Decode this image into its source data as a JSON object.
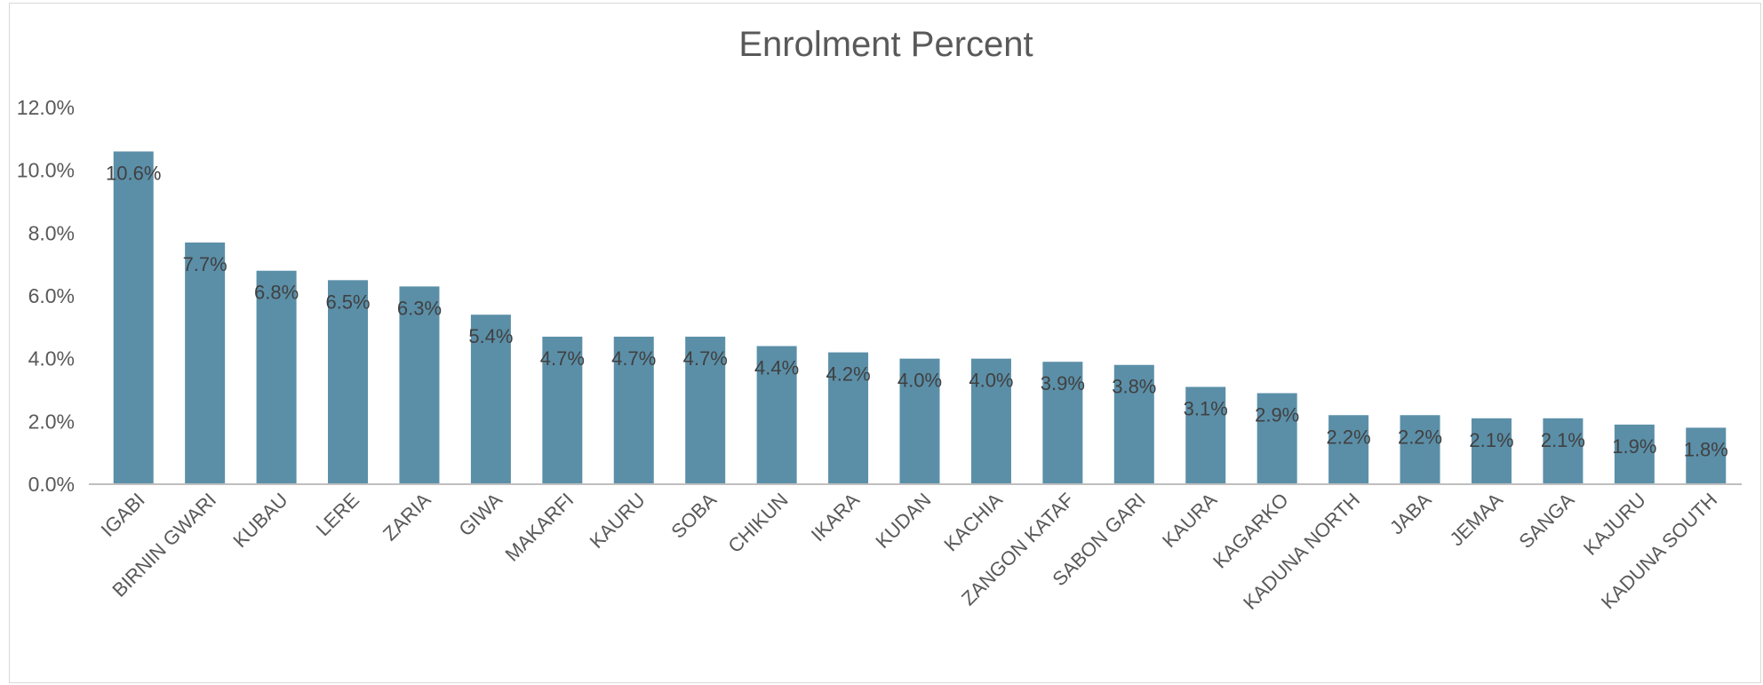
{
  "chart_data": {
    "type": "bar",
    "title": "Enrolment Percent",
    "xlabel": "",
    "ylabel": "",
    "ylim": [
      0,
      12
    ],
    "yticks": [
      "0.0%",
      "2.0%",
      "4.0%",
      "6.0%",
      "8.0%",
      "10.0%",
      "12.0%"
    ],
    "grid": false,
    "legend": "none",
    "bar_color": "#5b8fa8",
    "categories": [
      "IGABI",
      "BIRNIN GWARI",
      "KUBAU",
      "LERE",
      "ZARIA",
      "GIWA",
      "MAKARFI",
      "KAURU",
      "SOBA",
      "CHIKUN",
      "IKARA",
      "KUDAN",
      "KACHIA",
      "ZANGON KATAF",
      "SABON GARI",
      "KAURA",
      "KAGARKO",
      "KADUNA NORTH",
      "JABA",
      "JEMAA",
      "SANGA",
      "KAJURU",
      "KADUNA SOUTH"
    ],
    "values": [
      10.6,
      7.7,
      6.8,
      6.5,
      6.3,
      5.4,
      4.7,
      4.7,
      4.7,
      4.4,
      4.2,
      4.0,
      4.0,
      3.9,
      3.8,
      3.1,
      2.9,
      2.2,
      2.2,
      2.1,
      2.1,
      1.9,
      1.8
    ],
    "data_labels": [
      "10.6%",
      "7.7%",
      "6.8%",
      "6.5%",
      "6.3%",
      "5.4%",
      "4.7%",
      "4.7%",
      "4.7%",
      "4.4%",
      "4.2%",
      "4.0%",
      "4.0%",
      "3.9%",
      "3.8%",
      "3.1%",
      "2.9%",
      "2.2%",
      "2.2%",
      "2.1%",
      "2.1%",
      "1.9%",
      "1.8%"
    ]
  }
}
